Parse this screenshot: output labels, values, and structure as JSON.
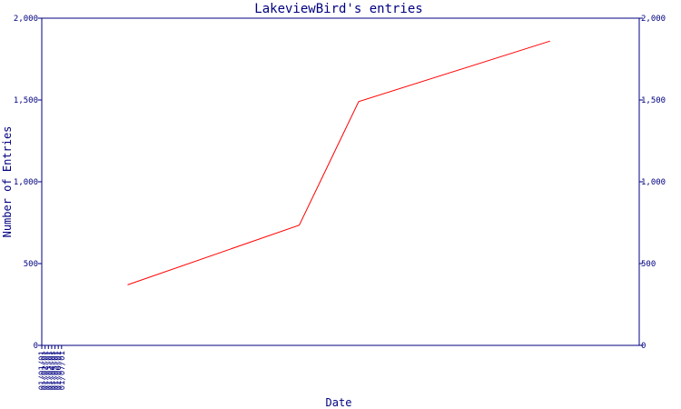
{
  "chart_data": {
    "type": "line",
    "title": "LakeviewBird's entries",
    "xlabel": "Date",
    "ylabel": "Number of Entries",
    "x_ticks": [
      "01/01/01",
      "01/02/01",
      "01/03/01",
      "01/04/01",
      "01/05/01",
      "01/06/01",
      "01/07/01"
    ],
    "y_ticks": [
      0,
      500,
      1000,
      1500,
      2000
    ],
    "y_tick_labels": [
      "0",
      "500",
      "1,000",
      "1,500",
      "2,000"
    ],
    "xlim": [
      "2001-01-01",
      "2001-07-01"
    ],
    "ylim": [
      0,
      2000
    ],
    "grid": false,
    "series": [
      {
        "color": "#ff0000",
        "x": [
          "2001-01-27",
          "2001-03-20",
          "2001-04-07",
          "2001-06-04"
        ],
        "y": [
          370,
          735,
          1490,
          1860
        ]
      }
    ]
  }
}
